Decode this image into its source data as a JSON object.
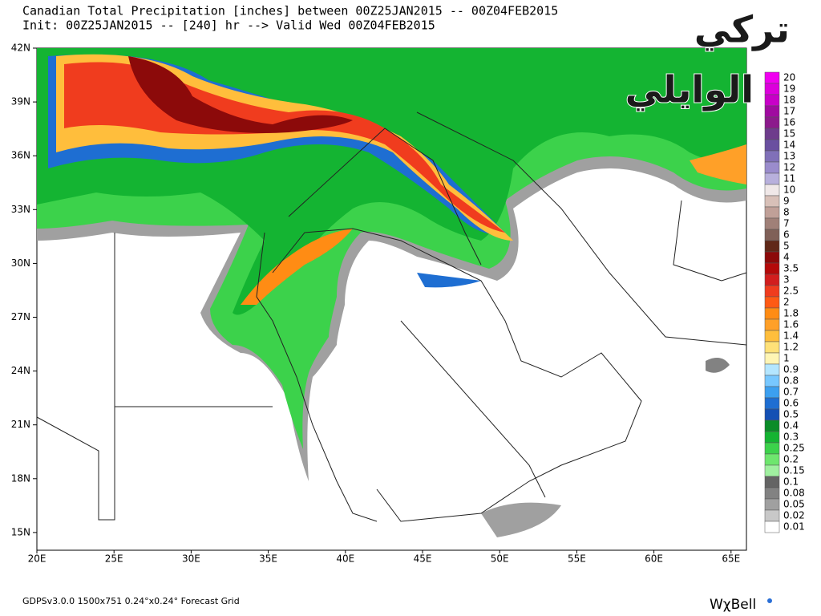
{
  "header": {
    "title": "Canadian Total Precipitation [inches] between 00Z25JAN2015 -- 00Z04FEB2015",
    "subtitle": "Init: 00Z25JAN2015 -- [240] hr --> Valid Wed 00Z04FEB2015"
  },
  "map": {
    "lat_labels": [
      "42N",
      "39N",
      "36N",
      "33N",
      "30N",
      "27N",
      "24N",
      "21N",
      "18N",
      "15N"
    ],
    "lon_labels": [
      "20E",
      "25E",
      "30E",
      "35E",
      "40E",
      "45E",
      "50E",
      "55E",
      "60E",
      "65E"
    ]
  },
  "colorbar": [
    {
      "label": "20",
      "color": "#f000f0"
    },
    {
      "label": "19",
      "color": "#dc00dc"
    },
    {
      "label": "18",
      "color": "#c800c8"
    },
    {
      "label": "17",
      "color": "#a00aa0"
    },
    {
      "label": "16",
      "color": "#8c1a8c"
    },
    {
      "label": "15",
      "color": "#6e3c8c"
    },
    {
      "label": "14",
      "color": "#6a50a0"
    },
    {
      "label": "13",
      "color": "#8070b8"
    },
    {
      "label": "12",
      "color": "#9a8ccc"
    },
    {
      "label": "11",
      "color": "#b8b0dc"
    },
    {
      "label": "10",
      "color": "#f0e8e8"
    },
    {
      "label": "9",
      "color": "#d8c0b8"
    },
    {
      "label": "8",
      "color": "#c0a098"
    },
    {
      "label": "7",
      "color": "#a08078"
    },
    {
      "label": "6",
      "color": "#806058"
    },
    {
      "label": "5",
      "color": "#602818"
    },
    {
      "label": "4",
      "color": "#8c0a0a"
    },
    {
      "label": "3.5",
      "color": "#b40a0a"
    },
    {
      "label": "3",
      "color": "#d21e1e"
    },
    {
      "label": "2.5",
      "color": "#f03c1e"
    },
    {
      "label": "2",
      "color": "#ff5a14"
    },
    {
      "label": "1.8",
      "color": "#ff8c14"
    },
    {
      "label": "1.6",
      "color": "#ffa028"
    },
    {
      "label": "1.4",
      "color": "#ffbe3c"
    },
    {
      "label": "1.2",
      "color": "#ffe178"
    },
    {
      "label": "1",
      "color": "#fff5b4"
    },
    {
      "label": "0.9",
      "color": "#b4e6ff"
    },
    {
      "label": "0.8",
      "color": "#78c8ff"
    },
    {
      "label": "0.7",
      "color": "#3ca0f0"
    },
    {
      "label": "0.6",
      "color": "#1e6ed2"
    },
    {
      "label": "0.5",
      "color": "#1450b4"
    },
    {
      "label": "0.4",
      "color": "#0a8c28"
    },
    {
      "label": "0.3",
      "color": "#14b432"
    },
    {
      "label": "0.25",
      "color": "#3cd24b"
    },
    {
      "label": "0.2",
      "color": "#6ee66e"
    },
    {
      "label": "0.15",
      "color": "#a0f0a0"
    },
    {
      "label": "0.1",
      "color": "#646464"
    },
    {
      "label": "0.08",
      "color": "#828282"
    },
    {
      "label": "0.05",
      "color": "#a0a0a0"
    },
    {
      "label": "0.02",
      "color": "#c8c8c8"
    },
    {
      "label": "0.01",
      "color": "#ffffff"
    }
  ],
  "watermark": {
    "line1": "تركي",
    "line2": "الوايلي"
  },
  "footer": {
    "left": "GDPSv3.0.0  1500x751  0.24°x0.24° Forecast Grid",
    "logo": "WχBell"
  }
}
